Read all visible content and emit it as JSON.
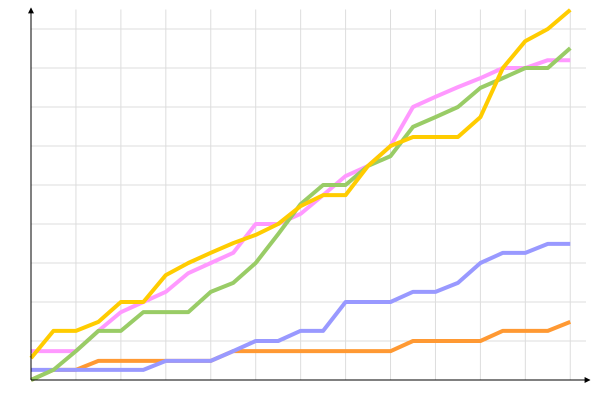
{
  "chart_data": {
    "type": "line",
    "x": [
      0,
      1,
      2,
      3,
      4,
      5,
      6,
      7,
      8,
      9,
      10,
      11,
      12,
      13,
      14,
      15,
      16,
      17,
      18,
      19,
      20,
      21,
      22,
      23,
      24
    ],
    "series": [
      {
        "color": "#ff9933",
        "values": [
          0,
          0.26,
          0.26,
          0.49,
          0.49,
          0.49,
          0.49,
          0.49,
          0.49,
          0.74,
          0.74,
          0.74,
          0.74,
          0.74,
          0.74,
          0.74,
          0.74,
          1.0,
          1.0,
          1.0,
          1.0,
          1.26,
          1.26,
          1.26,
          1.49
        ]
      },
      {
        "color": "#9999ff",
        "values": [
          0.26,
          0.26,
          0.26,
          0.26,
          0.26,
          0.26,
          0.49,
          0.49,
          0.49,
          0.74,
          1.0,
          1.0,
          1.26,
          1.26,
          2.0,
          2.0,
          2.0,
          2.26,
          2.26,
          2.49,
          3.0,
          3.26,
          3.26,
          3.49,
          3.49
        ]
      },
      {
        "color": "#ff99ff",
        "values": [
          0.74,
          0.74,
          0.74,
          1.26,
          1.74,
          2.0,
          2.26,
          2.74,
          3.0,
          3.26,
          4.0,
          4.0,
          4.26,
          4.74,
          5.23,
          5.49,
          6.0,
          7.0,
          7.26,
          7.51,
          7.74,
          8.0,
          8.0,
          8.2,
          8.2
        ]
      },
      {
        "color": "#99cc66",
        "values": [
          0,
          0.26,
          0.74,
          1.26,
          1.26,
          1.74,
          1.74,
          1.74,
          2.26,
          2.49,
          3.0,
          3.74,
          4.51,
          5.0,
          5.0,
          5.49,
          5.74,
          6.49,
          6.74,
          7.0,
          7.49,
          7.74,
          8.0,
          8.0,
          8.51
        ]
      },
      {
        "color": "#ffcc00",
        "values": [
          0.56,
          1.26,
          1.26,
          1.49,
          2.0,
          2.0,
          2.69,
          3.0,
          3.26,
          3.51,
          3.72,
          4.0,
          4.46,
          4.74,
          4.74,
          5.49,
          6.0,
          6.23,
          6.23,
          6.23,
          6.74,
          8.0,
          8.69,
          9.0,
          9.49
        ]
      }
    ],
    "xlim": [
      0,
      24.7
    ],
    "ylim": [
      0,
      9.5
    ],
    "xticks": [
      0,
      2,
      4,
      6,
      8,
      10,
      12,
      14,
      16,
      18,
      20,
      22,
      24
    ],
    "yticks": [
      0,
      1,
      2,
      3,
      4,
      5,
      6,
      7,
      8,
      9
    ],
    "grid": true
  }
}
